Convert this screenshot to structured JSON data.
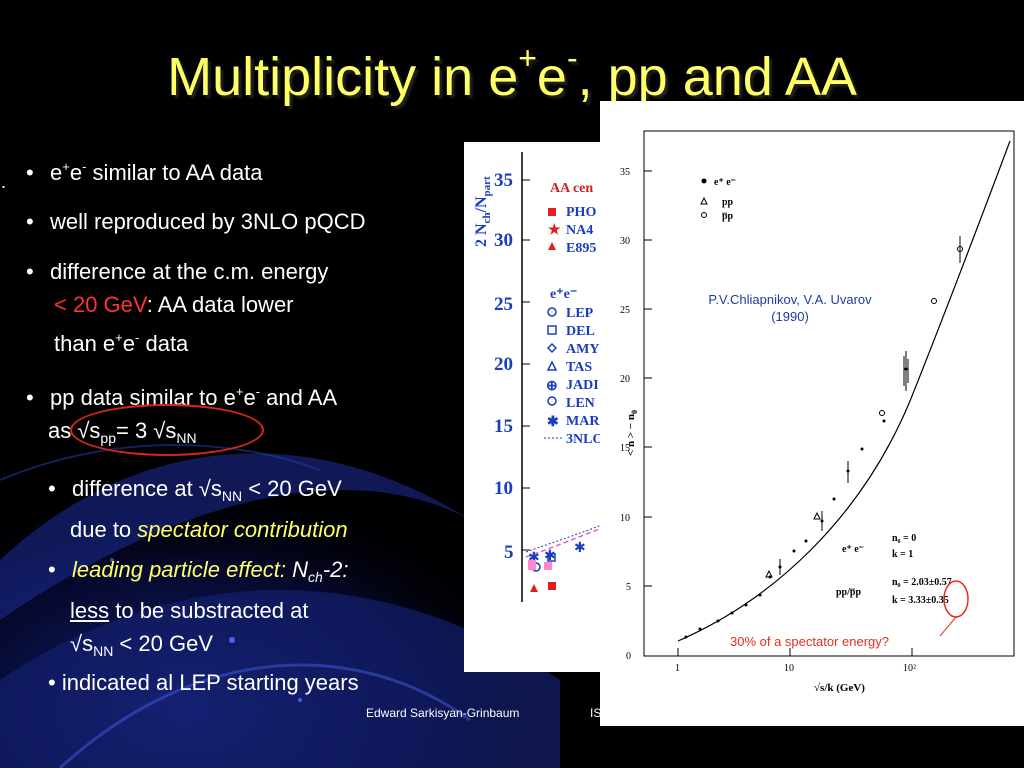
{
  "slide": {
    "title_main": "Multiplicity in e",
    "title_sup1": "+",
    "title_mid": "e",
    "title_sup2": "-",
    "title_tail": ", pp and AA",
    "dot": "."
  },
  "bullets": {
    "b1": {
      "pre": "e",
      "sup1": "+",
      "mid": "e",
      "sup2": "-",
      "post": " similar to AA data"
    },
    "b2": {
      "text": "well reproduced by 3NLO pQCD"
    },
    "b3": {
      "line1": "difference at the c.m. energy",
      "red": "< 20 GeV",
      "line2_rest": ": AA data lower",
      "line3_pre": "than e",
      "line3_sup1": "+",
      "line3_mid": "e",
      "line3_sup2": "-",
      "line3_post": " data"
    },
    "b4": {
      "line1_pre": "pp data similar to e",
      "line1_sup1": "+",
      "line1_mid": "e",
      "line1_sup2": "-",
      "line1_post": " and AA",
      "line2_pre": "as √s",
      "line2_sub1": "pp",
      "line2_mid": "= 3 √s",
      "line2_sub2": "NN"
    },
    "b5": {
      "line1_pre": "difference at √s",
      "line1_sub": "NN",
      "line1_post": " < 20 GeV",
      "line2_pre": "due to ",
      "line2_it": "spectator contribution"
    },
    "b6": {
      "it": "leading particle effect: ",
      "nch": "N",
      "nch_sub": "ch",
      "nch_post": "-2:",
      "line2_u": "less",
      "line2_post": " to be substracted at",
      "line3_pre": "√s",
      "line3_sub": "NN",
      "line3_post": " < 20 GeV"
    },
    "b7": {
      "text": "indicated al LEP starting years"
    }
  },
  "footer": {
    "author": "Edward Sarkisyan-Grinbaum",
    "partial": "IS"
  },
  "left_figure": {
    "ylabel": "2 N",
    "ylabel_sub1": "ch",
    "ylabel_mid": "/N",
    "ylabel_sub2": "part",
    "yticks": [
      "35",
      "30",
      "25",
      "20",
      "15",
      "10",
      "5"
    ],
    "legend_aa_header": "AA cen",
    "legend_aa": [
      "PHO",
      "NA4",
      "E895"
    ],
    "legend_ee_header": "e⁺e⁻",
    "legend_ee": [
      "LEP",
      "DEL",
      "AMY",
      "TAS",
      "JADI",
      "LEN",
      "MAR",
      "3NLO"
    ]
  },
  "right_figure": {
    "ylabel": "< n > − n",
    "ylabel_sub": "0",
    "xlabel": "√s/k  (GeV)",
    "yticks": [
      "35",
      "30",
      "25",
      "20",
      "15",
      "10",
      "5",
      "0"
    ],
    "xticks": [
      "1",
      "10",
      "10²"
    ],
    "legend": [
      "e⁺ e⁻",
      "pp",
      "p̅p"
    ],
    "ref_line1": "P.V.Chliapnikov, V.A. Uvarov",
    "ref_line2": "(1990)",
    "param_ee_label": "e⁺ e⁻",
    "param_ee_n0": "n₀  =   0",
    "param_ee_k": "k   =   1",
    "param_pp_label": "pp/p̅p",
    "param_pp_n0": "n₀  =  2.03±0.57",
    "param_pp_k": "k   =  3.33±0.35",
    "annotation": "30% of a spectator energy?"
  }
}
